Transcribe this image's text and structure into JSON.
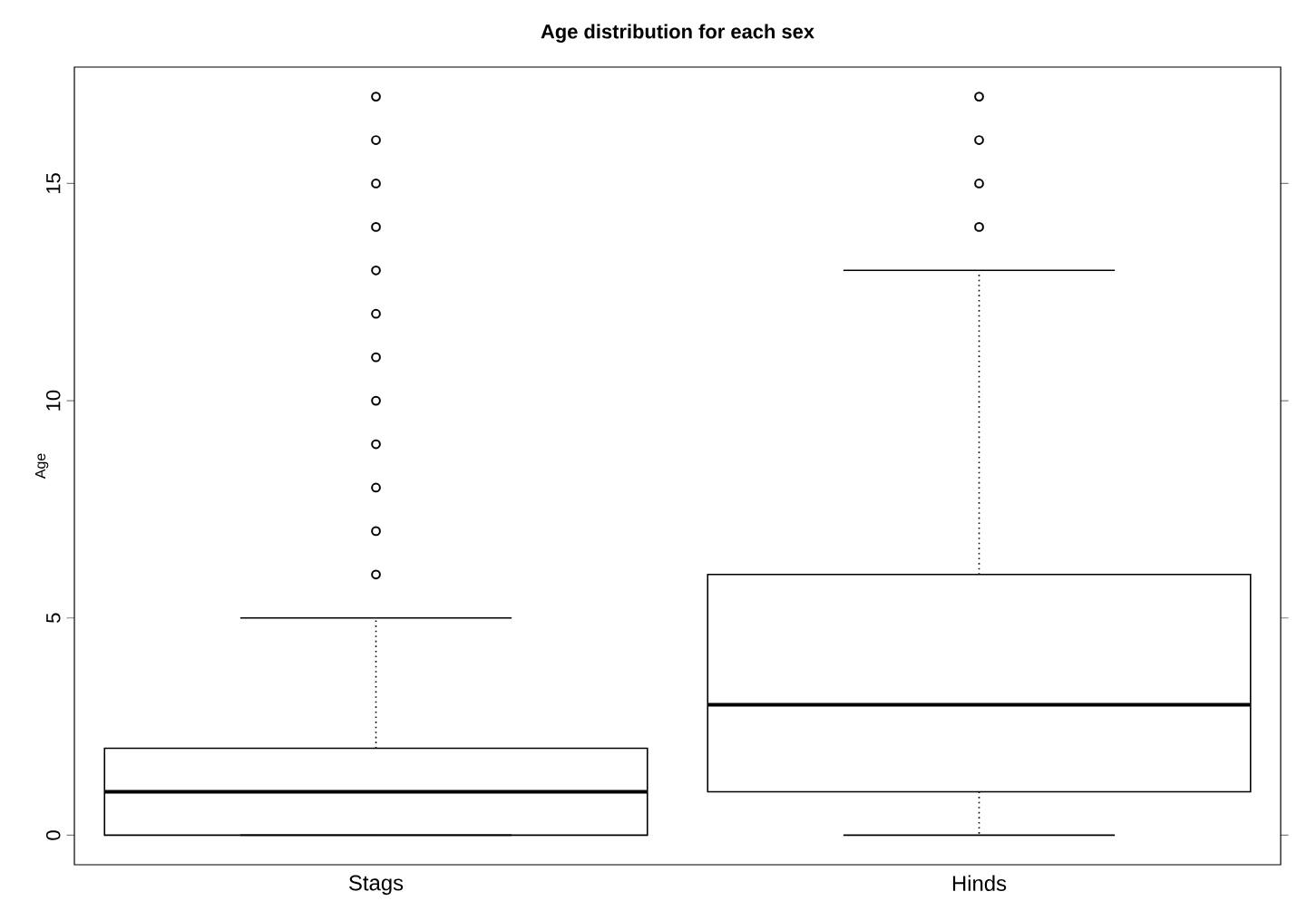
{
  "chart_data": {
    "type": "box",
    "title": "Age distribution for each sex",
    "ylabel": "Age",
    "categories": [
      "Stags",
      "Hinds"
    ],
    "boxes": [
      {
        "low": 0,
        "q1": 0,
        "median": 1,
        "q3": 2,
        "high": 5,
        "outliers": [
          6,
          7,
          8,
          9,
          10,
          11,
          12,
          13,
          14,
          15,
          16,
          17
        ]
      },
      {
        "low": 0,
        "q1": 1,
        "median": 3,
        "q3": 6,
        "high": 13,
        "outliers": [
          14,
          15,
          16,
          17
        ]
      }
    ],
    "ylim": [
      -0.68,
      17.68
    ],
    "yticks": [
      0,
      5,
      10,
      15
    ],
    "color": "#000000"
  }
}
